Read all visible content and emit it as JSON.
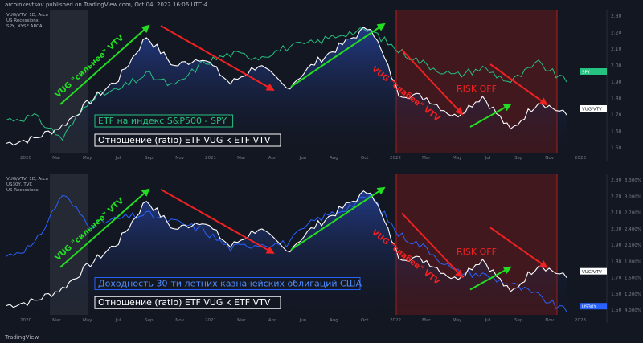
{
  "header": {
    "publisher_line": "arcoinkevtsov published on TradingView.com, Oct 04, 2022 16:06 UTC-4"
  },
  "footer": {
    "brand": "TradingView"
  },
  "colors": {
    "background": "#131722",
    "ratio_line": "#ffffff",
    "spy_line": "#26c281",
    "yield_line": "#2962ff",
    "arrow_green": "#22dd22",
    "arrow_red": "#ee2222",
    "risk_off_zone": "#7a1a1a",
    "area_fill": "#1e3a8a"
  },
  "panels": [
    {
      "legend": [
        "VUG/VTV, 1D, Arca",
        "US Recessions",
        "SPY, NYSE ARCA"
      ],
      "labels": [
        {
          "text": "VUG \"сильнее\" VTV",
          "color": "green"
        },
        {
          "text": "VUG \"слабее\" VTV",
          "color": "red"
        },
        {
          "text": "RISK OFF",
          "color": "red"
        }
      ],
      "boxes": [
        {
          "text": "ETF на индекс S&P500 - SPY",
          "color": "green"
        },
        {
          "text": "Отношение (ratio) ETF VUG к ETF VTV",
          "color": "white"
        }
      ],
      "y_ticks": [
        "2.30",
        "2.20",
        "2.10",
        "2.00",
        "1.90",
        "1.80",
        "1.70",
        "1.60",
        "1.50"
      ],
      "badges": [
        {
          "text": "SPY",
          "color": "green"
        },
        {
          "text": "VUG/VTV",
          "color": "white"
        }
      ]
    },
    {
      "legend": [
        "VUG/VTV, 1D, Arca",
        "US30Y, TVC",
        "US Recessions"
      ],
      "labels": [
        {
          "text": "VUG \"сильнее\" VTV",
          "color": "green"
        },
        {
          "text": "VUG \"слабее\" VTV",
          "color": "red"
        },
        {
          "text": "RISK OFF",
          "color": "red"
        }
      ],
      "boxes": [
        {
          "text": "Доходность 30-ти летних казначейских облигаций США",
          "color": "blue"
        },
        {
          "text": "Отношение (ratio) ETF VUG к ETF VTV",
          "color": "white"
        }
      ],
      "y_ticks": [
        "2.30",
        "2.20",
        "2.10",
        "2.00",
        "1.90",
        "1.80",
        "1.70",
        "1.60",
        "1.50"
      ],
      "y_ticks_right": [
        "3.300%",
        "3.000%",
        "2.700%",
        "2.400%",
        "2.100%",
        "1.800%",
        "1.500%",
        "1.200%",
        "4.000%"
      ],
      "badges": [
        {
          "text": "VUG/VTV",
          "color": "white"
        },
        {
          "text": "US30Y",
          "color": "blue"
        }
      ]
    }
  ],
  "chart_data": [
    {
      "type": "line",
      "x_ticks": [
        "2020",
        "Mar",
        "May",
        "Jul",
        "Sep",
        "Nov",
        "2021",
        "Mar",
        "Apr",
        "Jun",
        "Aug",
        "Oct",
        "2022",
        "Mar",
        "May",
        "Jul",
        "Sep",
        "Nov",
        "2023"
      ],
      "ylim": [
        1.5,
        2.35
      ],
      "series": [
        {
          "name": "VUG/VTV",
          "values": [
            1.56,
            1.59,
            1.67,
            1.83,
            1.97,
            2.24,
            2.05,
            2.11,
            1.94,
            2.06,
            1.91,
            2.07,
            2.19,
            2.31,
            1.88,
            1.85,
            1.73,
            1.86,
            1.64,
            1.83,
            1.74
          ]
        },
        {
          "name": "SPY",
          "values": [
            1.71,
            1.73,
            1.59,
            1.85,
            1.9,
            2.0,
            1.92,
            2.07,
            2.13,
            2.11,
            2.17,
            2.2,
            2.26,
            2.28,
            2.15,
            2.06,
            1.99,
            2.04,
            1.95,
            2.07,
            1.95
          ]
        }
      ]
    },
    {
      "type": "line",
      "x_ticks": [
        "2020",
        "Mar",
        "May",
        "Jul",
        "Sep",
        "Nov",
        "2021",
        "Mar",
        "Apr",
        "Jun",
        "Aug",
        "Oct",
        "2022",
        "Mar",
        "May",
        "Jul",
        "Sep",
        "Nov",
        "2023"
      ],
      "ylim": [
        1.5,
        2.35
      ],
      "series": [
        {
          "name": "VUG/VTV",
          "values": [
            1.56,
            1.59,
            1.67,
            1.83,
            1.97,
            2.24,
            2.05,
            2.11,
            1.94,
            2.06,
            1.91,
            2.07,
            2.19,
            2.31,
            1.88,
            1.85,
            1.73,
            1.86,
            1.64,
            1.83,
            1.74
          ]
        },
        {
          "name": "US30Y",
          "values": [
            1.88,
            1.95,
            2.28,
            2.08,
            2.12,
            2.15,
            2.1,
            2.05,
            1.93,
            1.96,
            1.96,
            2.11,
            2.18,
            2.27,
            2.02,
            1.93,
            1.78,
            1.76,
            1.7,
            1.62,
            1.52
          ]
        }
      ]
    }
  ]
}
